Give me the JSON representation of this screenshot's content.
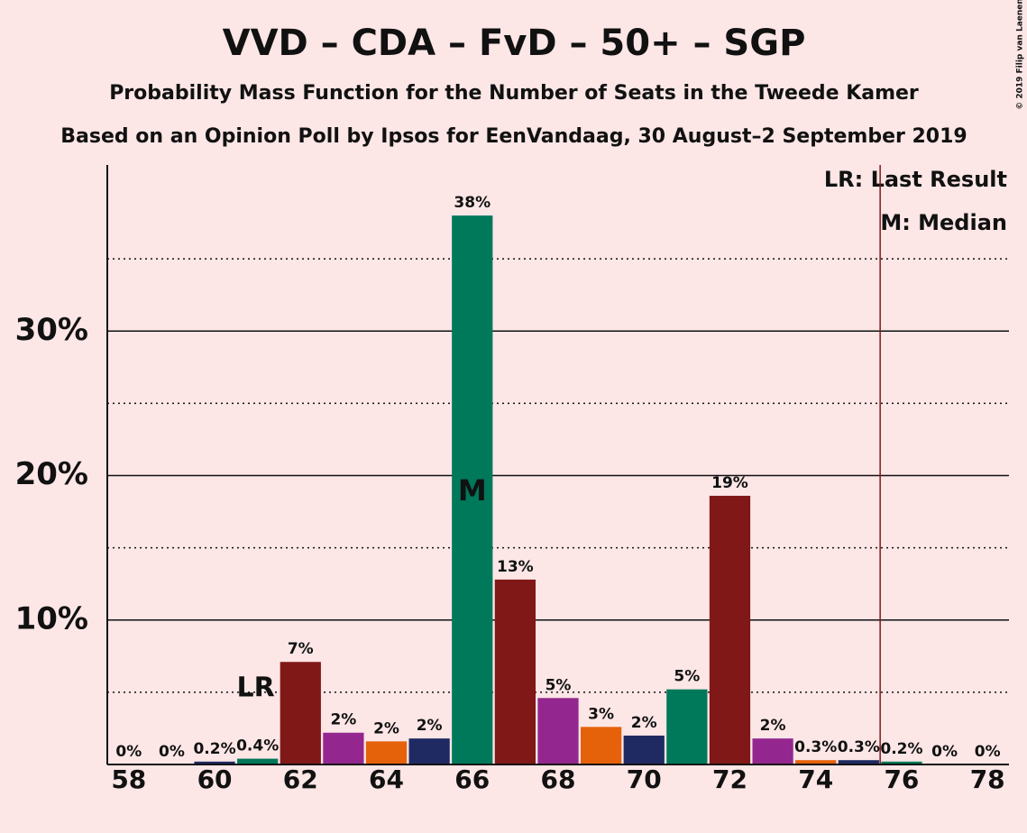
{
  "chart_data": {
    "type": "bar",
    "title": "VVD – CDA – FvD – 50+ – SGP",
    "subtitle": "Probability Mass Function for the Number of Seats in the Tweede Kamer",
    "subtitle2": "Based on an Opinion Poll by Ipsos for EenVandaag, 30 August–2 September 2019",
    "copyright": "© 2019 Filip van Laenen",
    "x": [
      58,
      59,
      60,
      61,
      62,
      63,
      64,
      65,
      66,
      67,
      68,
      69,
      70,
      71,
      72,
      73,
      74,
      75,
      76,
      77,
      78
    ],
    "values": [
      0,
      0,
      0.2,
      0.4,
      7.1,
      2.2,
      1.6,
      1.8,
      38,
      12.8,
      4.6,
      2.6,
      2.0,
      5.2,
      18.6,
      1.8,
      0.3,
      0.3,
      0.2,
      0,
      0
    ],
    "value_labels": [
      "0%",
      "0%",
      "0.2%",
      "0.4%",
      "7%",
      "2%",
      "2%",
      "2%",
      "38%",
      "13%",
      "5%",
      "3%",
      "2%",
      "5%",
      "19%",
      "2%",
      "0.3%",
      "0.3%",
      "0.2%",
      "0%",
      "0%"
    ],
    "colors": [
      "#93278f",
      "#e5620a",
      "#1f2a63",
      "#00785a",
      "#801818",
      "#93278f",
      "#e5620a",
      "#1f2a63",
      "#00785a",
      "#801818",
      "#93278f",
      "#e5620a",
      "#1f2a63",
      "#00785a",
      "#801818",
      "#93278f",
      "#e5620a",
      "#1f2a63",
      "#00785a",
      "#801818",
      "#93278f"
    ],
    "xlim": [
      57.5,
      78.5
    ],
    "xticks": [
      58,
      60,
      62,
      64,
      66,
      68,
      70,
      72,
      74,
      76,
      78
    ],
    "ylim": [
      0,
      41.5
    ],
    "yticks": [
      {
        "value": 10,
        "label": "10%"
      },
      {
        "value": 20,
        "label": "20%"
      },
      {
        "value": 30,
        "label": "30%"
      }
    ],
    "minor_gridlines": [
      5,
      15,
      25,
      35
    ],
    "grid": true,
    "majority_line": 75.5,
    "last_result": {
      "x": 61,
      "label": "LR"
    },
    "median": {
      "x": 66,
      "label": "M"
    },
    "legend": [
      "LR: Last Result",
      "M: Median"
    ]
  }
}
